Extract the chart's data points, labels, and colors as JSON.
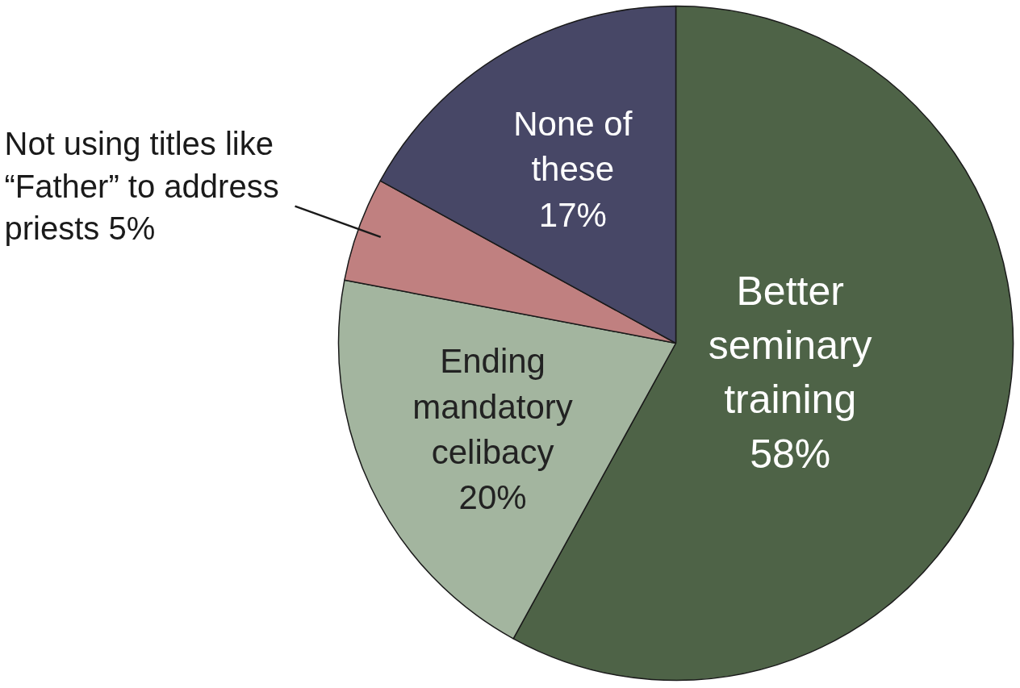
{
  "chart_data": {
    "type": "pie",
    "categories": [
      "Better\nseminary\ntraining",
      "Ending\nmandatory\ncelibacy",
      "Not using titles like\n“Father” to address\npriests",
      "None of\nthese"
    ],
    "values": [
      58,
      20,
      5,
      17
    ],
    "colors": [
      "#4e6347",
      "#a3b59f",
      "#c08080",
      "#474766"
    ],
    "value_labels": [
      "58%",
      "20%",
      "5%",
      "17%"
    ]
  }
}
